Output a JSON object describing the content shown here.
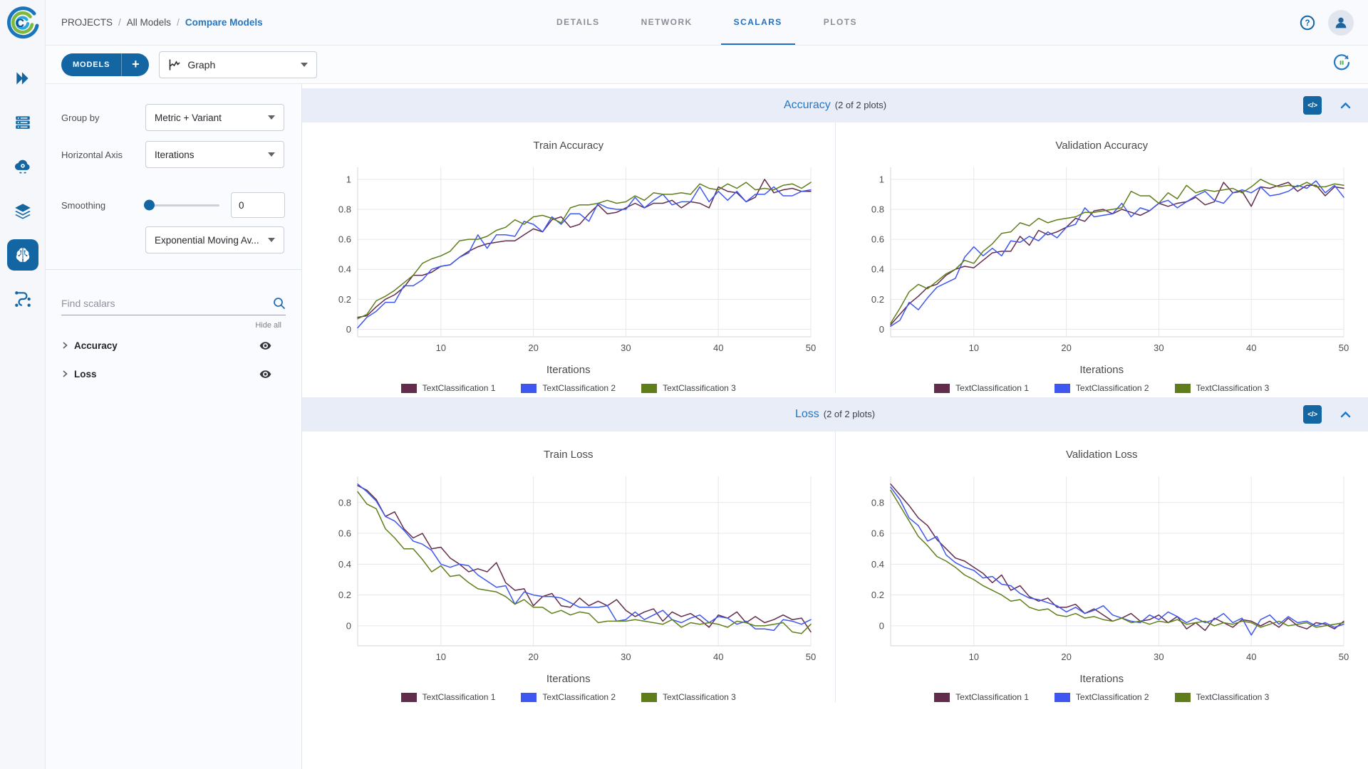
{
  "header": {
    "breadcrumb": [
      "PROJECTS",
      "All Models",
      "Compare Models"
    ],
    "breadcrumb_separator": "/",
    "tabs": [
      {
        "label": "DETAILS",
        "active": false
      },
      {
        "label": "NETWORK",
        "active": false
      },
      {
        "label": "SCALARS",
        "active": true
      },
      {
        "label": "PLOTS",
        "active": false
      }
    ]
  },
  "toolbar": {
    "models_label": "MODELS",
    "add_label": "+",
    "view_selector_value": "Graph"
  },
  "rail": {
    "items": [
      {
        "icon": "projects-icon",
        "active": false
      },
      {
        "icon": "dashboard-icon",
        "active": false
      },
      {
        "icon": "workers-icon",
        "active": false
      },
      {
        "icon": "datasets-icon",
        "active": false
      },
      {
        "icon": "models-icon",
        "active": true
      },
      {
        "icon": "pipelines-icon",
        "active": false
      }
    ]
  },
  "controls": {
    "group_by_label": "Group by",
    "group_by_value": "Metric + Variant",
    "horizontal_axis_label": "Horizontal Axis",
    "horizontal_axis_value": "Iterations",
    "smoothing_label": "Smoothing",
    "smoothing_value": "0",
    "smoothing_method_value": "Exponential Moving Av...",
    "find_scalars_placeholder": "Find scalars",
    "hide_all_label": "Hide all",
    "scalar_groups": [
      {
        "label": "Accuracy"
      },
      {
        "label": "Loss"
      }
    ]
  },
  "sections": [
    {
      "title": "Accuracy",
      "subtitle": "(2 of 2 plots)",
      "code_icon_label": "</>"
    },
    {
      "title": "Loss",
      "subtitle": "(2 of 2 plots)",
      "code_icon_label": "</>"
    }
  ],
  "colors": {
    "primary": "#1466a3",
    "link": "#2477c4",
    "series1": "#622c4c",
    "series2": "#3d57f0",
    "series3": "#5f7e1b"
  },
  "chart_data": [
    {
      "type": "line",
      "title": "Train Accuracy",
      "xlabel": "Iterations",
      "ylabel": "",
      "x_start": 1,
      "xlim": [
        1,
        50
      ],
      "ylim": [
        -0.05,
        1.08
      ],
      "xticks": [
        10,
        20,
        30,
        40,
        50
      ],
      "yticks": [
        0,
        0.2,
        0.4,
        0.6,
        0.8,
        1
      ],
      "grid": true,
      "legend_position": "bottom",
      "series": [
        {
          "name": "TextClassification 1",
          "color": "#622c4c",
          "values": [
            0.08,
            0.09,
            0.15,
            0.2,
            0.23,
            0.28,
            0.36,
            0.36,
            0.38,
            0.42,
            0.43,
            0.48,
            0.52,
            0.55,
            0.57,
            0.58,
            0.59,
            0.59,
            0.63,
            0.67,
            0.65,
            0.73,
            0.75,
            0.68,
            0.7,
            0.77,
            0.83,
            0.77,
            0.78,
            0.81,
            0.84,
            0.81,
            0.84,
            0.84,
            0.86,
            0.81,
            0.85,
            0.84,
            0.81,
            0.95,
            0.92,
            0.91,
            0.85,
            0.88,
            1.0,
            0.91,
            0.93,
            0.94,
            0.92,
            0.92
          ]
        },
        {
          "name": "TextClassification 2",
          "color": "#3d57f0",
          "values": [
            0.01,
            0.08,
            0.12,
            0.18,
            0.18,
            0.29,
            0.29,
            0.33,
            0.4,
            0.42,
            0.43,
            0.48,
            0.51,
            0.63,
            0.54,
            0.63,
            0.63,
            0.62,
            0.72,
            0.7,
            0.65,
            0.75,
            0.7,
            0.77,
            0.77,
            0.72,
            0.84,
            0.81,
            0.8,
            0.8,
            0.88,
            0.81,
            0.86,
            0.9,
            0.83,
            0.85,
            0.85,
            0.95,
            0.85,
            0.92,
            0.86,
            0.92,
            0.85,
            0.9,
            0.9,
            0.95,
            0.89,
            0.89,
            0.92,
            0.93
          ]
        },
        {
          "name": "TextClassification 3",
          "color": "#5f7e1b",
          "values": [
            0.07,
            0.1,
            0.19,
            0.22,
            0.26,
            0.31,
            0.36,
            0.44,
            0.47,
            0.49,
            0.52,
            0.59,
            0.6,
            0.6,
            0.62,
            0.66,
            0.68,
            0.73,
            0.7,
            0.75,
            0.76,
            0.74,
            0.71,
            0.81,
            0.83,
            0.83,
            0.84,
            0.86,
            0.84,
            0.85,
            0.89,
            0.86,
            0.91,
            0.9,
            0.9,
            0.91,
            0.9,
            0.97,
            0.94,
            0.93,
            0.97,
            0.94,
            0.98,
            0.93,
            0.94,
            0.93,
            0.96,
            0.97,
            0.94,
            0.98
          ]
        }
      ]
    },
    {
      "type": "line",
      "title": "Validation Accuracy",
      "xlabel": "Iterations",
      "ylabel": "",
      "x_start": 1,
      "xlim": [
        1,
        50
      ],
      "ylim": [
        -0.05,
        1.08
      ],
      "xticks": [
        10,
        20,
        30,
        40,
        50
      ],
      "yticks": [
        0,
        0.2,
        0.4,
        0.6,
        0.8,
        1
      ],
      "grid": true,
      "legend_position": "bottom",
      "series": [
        {
          "name": "TextClassification 1",
          "color": "#622c4c",
          "values": [
            0.03,
            0.1,
            0.17,
            0.22,
            0.28,
            0.3,
            0.36,
            0.4,
            0.42,
            0.41,
            0.46,
            0.51,
            0.52,
            0.52,
            0.62,
            0.56,
            0.66,
            0.63,
            0.65,
            0.68,
            0.74,
            0.72,
            0.79,
            0.8,
            0.77,
            0.8,
            0.78,
            0.76,
            0.79,
            0.84,
            0.82,
            0.84,
            0.85,
            0.88,
            0.83,
            0.85,
            0.98,
            0.91,
            0.92,
            0.82,
            0.95,
            0.94,
            0.96,
            0.98,
            0.92,
            0.96,
            0.96,
            0.89,
            0.95,
            0.94
          ]
        },
        {
          "name": "TextClassification 2",
          "color": "#3d57f0",
          "values": [
            0.02,
            0.06,
            0.18,
            0.13,
            0.21,
            0.28,
            0.31,
            0.34,
            0.48,
            0.55,
            0.49,
            0.54,
            0.49,
            0.59,
            0.58,
            0.62,
            0.59,
            0.65,
            0.61,
            0.68,
            0.7,
            0.81,
            0.75,
            0.76,
            0.77,
            0.84,
            0.75,
            0.81,
            0.79,
            0.84,
            0.86,
            0.81,
            0.85,
            0.89,
            0.92,
            0.86,
            0.84,
            0.91,
            0.93,
            0.91,
            0.95,
            0.89,
            0.9,
            0.92,
            0.96,
            0.94,
            0.99,
            0.91,
            0.96,
            0.88
          ]
        },
        {
          "name": "TextClassification 3",
          "color": "#5f7e1b",
          "values": [
            0.04,
            0.14,
            0.25,
            0.3,
            0.27,
            0.32,
            0.37,
            0.4,
            0.46,
            0.44,
            0.52,
            0.57,
            0.64,
            0.65,
            0.71,
            0.69,
            0.74,
            0.71,
            0.73,
            0.74,
            0.75,
            0.78,
            0.78,
            0.79,
            0.8,
            0.81,
            0.92,
            0.89,
            0.89,
            0.84,
            0.91,
            0.87,
            0.96,
            0.91,
            0.93,
            0.92,
            0.93,
            0.94,
            0.91,
            0.95,
            1.0,
            0.97,
            0.95,
            0.96,
            0.95,
            0.98,
            0.95,
            0.95,
            0.97,
            0.96
          ]
        }
      ]
    },
    {
      "type": "line",
      "title": "Train Loss",
      "xlabel": "Iterations",
      "ylabel": "",
      "x_start": 1,
      "xlim": [
        1,
        50
      ],
      "ylim": [
        -0.13,
        0.97
      ],
      "xticks": [
        10,
        20,
        30,
        40,
        50
      ],
      "yticks": [
        0,
        0.2,
        0.4,
        0.6,
        0.8
      ],
      "grid": true,
      "legend_position": "bottom",
      "series": [
        {
          "name": "TextClassification 1",
          "color": "#622c4c",
          "values": [
            0.91,
            0.88,
            0.82,
            0.71,
            0.74,
            0.63,
            0.57,
            0.6,
            0.5,
            0.51,
            0.44,
            0.4,
            0.35,
            0.37,
            0.35,
            0.41,
            0.28,
            0.23,
            0.24,
            0.13,
            0.19,
            0.21,
            0.13,
            0.12,
            0.18,
            0.13,
            0.16,
            0.13,
            0.17,
            0.1,
            0.06,
            0.09,
            0.11,
            0.03,
            0.09,
            0.06,
            0.08,
            0.04,
            -0.01,
            0.07,
            0.05,
            0.09,
            0.02,
            0.06,
            0.02,
            0.04,
            0.07,
            0.04,
            0.05,
            -0.04
          ]
        },
        {
          "name": "TextClassification 2",
          "color": "#3d57f0",
          "values": [
            0.92,
            0.87,
            0.81,
            0.71,
            0.68,
            0.62,
            0.55,
            0.53,
            0.49,
            0.4,
            0.38,
            0.4,
            0.39,
            0.33,
            0.29,
            0.25,
            0.26,
            0.14,
            0.22,
            0.2,
            0.19,
            0.19,
            0.18,
            0.15,
            0.12,
            0.12,
            0.12,
            0.13,
            0.03,
            0.04,
            0.09,
            0.04,
            0.07,
            0.1,
            0.04,
            0.02,
            0.05,
            0.07,
            0.02,
            0.06,
            0.05,
            0.01,
            0.03,
            -0.02,
            -0.02,
            -0.03,
            0.04,
            0.03,
            0.01,
            0.04
          ]
        },
        {
          "name": "TextClassification 3",
          "color": "#5f7e1b",
          "values": [
            0.87,
            0.79,
            0.76,
            0.63,
            0.57,
            0.5,
            0.5,
            0.43,
            0.35,
            0.39,
            0.32,
            0.33,
            0.28,
            0.24,
            0.23,
            0.22,
            0.19,
            0.14,
            0.17,
            0.12,
            0.12,
            0.08,
            0.1,
            0.07,
            0.09,
            0.08,
            0.02,
            0.03,
            0.03,
            0.03,
            0.04,
            0.03,
            0.02,
            0.01,
            0.04,
            -0.01,
            0.02,
            0.01,
            0.02,
            0.01,
            -0.01,
            0.03,
            0.02,
            0.0,
            0.0,
            0.01,
            0.02,
            -0.04,
            -0.05,
            0.01
          ]
        }
      ]
    },
    {
      "type": "line",
      "title": "Validation Loss",
      "xlabel": "Iterations",
      "ylabel": "",
      "x_start": 1,
      "xlim": [
        1,
        50
      ],
      "ylim": [
        -0.13,
        0.97
      ],
      "xticks": [
        10,
        20,
        30,
        40,
        50
      ],
      "yticks": [
        0,
        0.2,
        0.4,
        0.6,
        0.8
      ],
      "grid": true,
      "legend_position": "bottom",
      "series": [
        {
          "name": "TextClassification 1",
          "color": "#622c4c",
          "values": [
            0.92,
            0.85,
            0.78,
            0.7,
            0.65,
            0.56,
            0.5,
            0.44,
            0.42,
            0.38,
            0.34,
            0.28,
            0.33,
            0.23,
            0.26,
            0.19,
            0.16,
            0.18,
            0.12,
            0.12,
            0.14,
            0.08,
            0.11,
            0.07,
            0.03,
            0.05,
            0.08,
            0.03,
            0.04,
            0.07,
            0.02,
            0.06,
            -0.02,
            0.02,
            -0.03,
            0.05,
            0.02,
            -0.01,
            0.04,
            0.03,
            0.0,
            0.03,
            -0.01,
            0.05,
            0.0,
            -0.02,
            0.02,
            0.01,
            -0.02,
            0.03
          ]
        },
        {
          "name": "TextClassification 2",
          "color": "#3d57f0",
          "values": [
            0.9,
            0.82,
            0.7,
            0.65,
            0.55,
            0.58,
            0.46,
            0.41,
            0.38,
            0.36,
            0.31,
            0.32,
            0.27,
            0.26,
            0.21,
            0.18,
            0.17,
            0.15,
            0.13,
            0.09,
            0.12,
            0.08,
            0.1,
            0.13,
            0.07,
            0.05,
            0.03,
            0.02,
            0.07,
            0.04,
            0.09,
            0.06,
            0.02,
            0.05,
            0.02,
            0.04,
            0.08,
            0.02,
            0.05,
            -0.06,
            0.04,
            0.07,
            0.01,
            0.06,
            0.02,
            0.03,
            0.0,
            0.02,
            -0.01,
            0.01
          ]
        },
        {
          "name": "TextClassification 3",
          "color": "#5f7e1b",
          "values": [
            0.88,
            0.78,
            0.68,
            0.58,
            0.52,
            0.45,
            0.42,
            0.38,
            0.33,
            0.3,
            0.26,
            0.23,
            0.2,
            0.16,
            0.17,
            0.12,
            0.1,
            0.11,
            0.07,
            0.06,
            0.08,
            0.05,
            0.06,
            0.04,
            0.03,
            0.05,
            0.02,
            0.03,
            0.01,
            0.03,
            0.02,
            0.04,
            0.01,
            0.02,
            0.03,
            0.0,
            0.02,
            0.01,
            0.03,
            0.02,
            -0.01,
            0.01,
            0.03,
            0.0,
            0.01,
            0.02,
            -0.01,
            0.0,
            0.01,
            0.02
          ]
        }
      ]
    }
  ]
}
